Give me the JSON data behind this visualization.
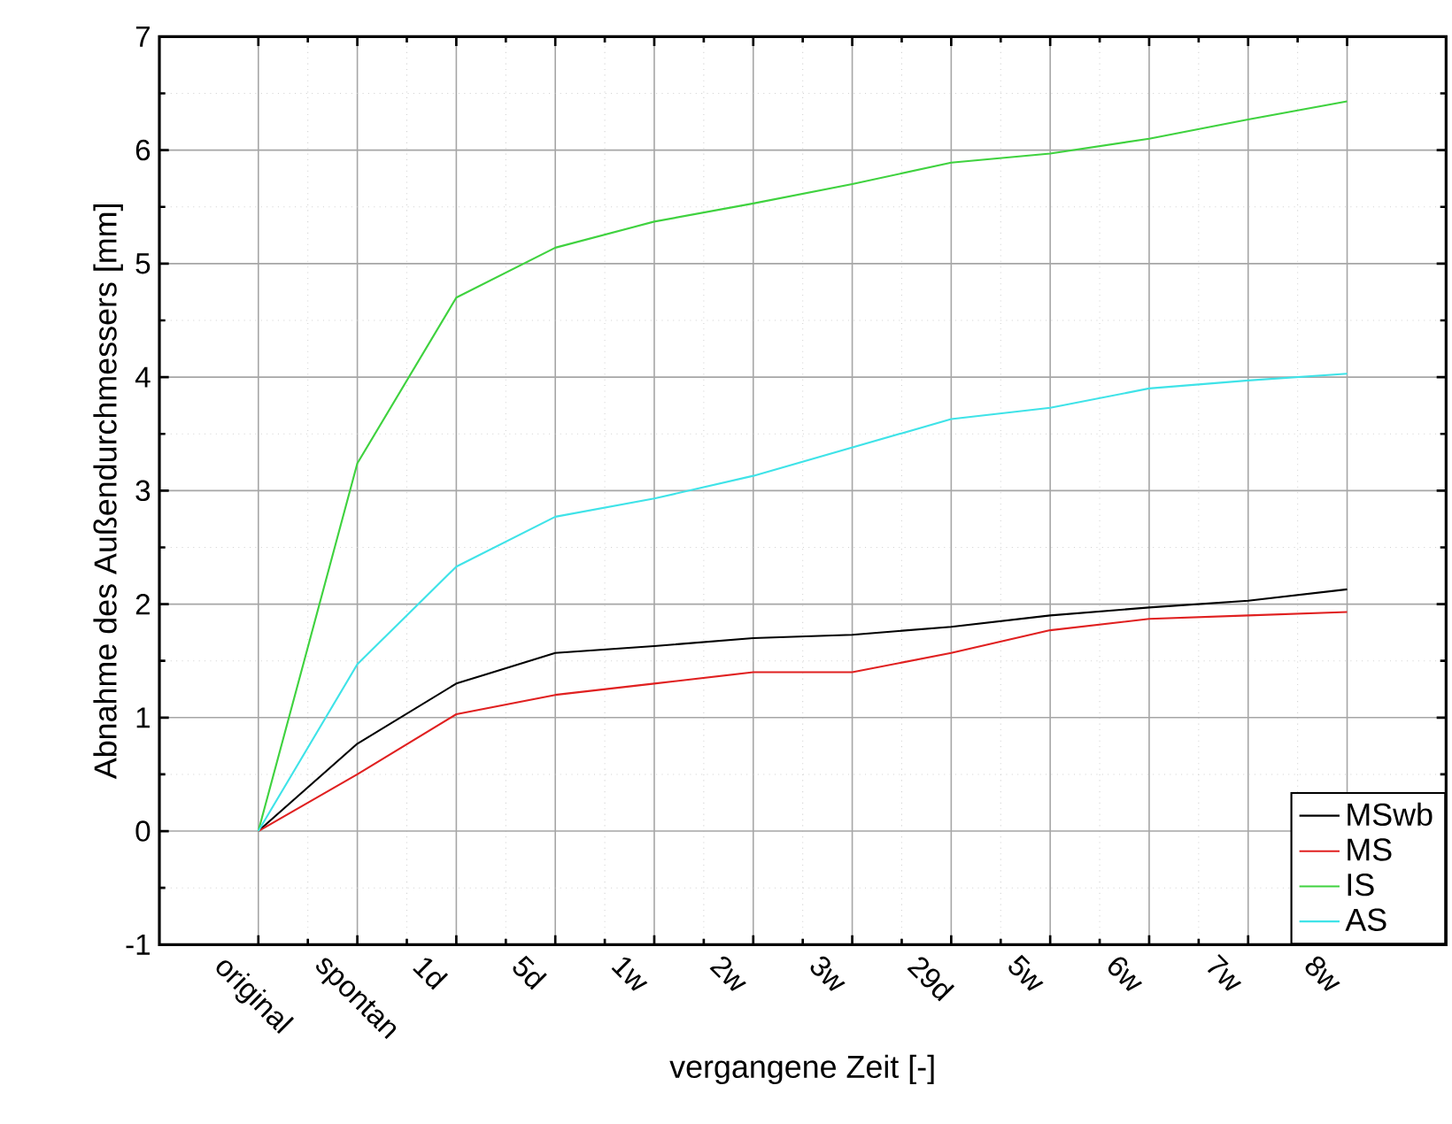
{
  "chart_data": {
    "type": "line",
    "xlabel": "vergangene Zeit [-]",
    "ylabel": "Abnahme des Außendurchmessers [mm]",
    "categories": [
      "original",
      "spontan",
      "1d",
      "5d",
      "1w",
      "2w",
      "3w",
      "29d",
      "5w",
      "6w",
      "7w",
      "8w"
    ],
    "series": [
      {
        "name": "MSwb",
        "color": "#000000",
        "values": [
          0,
          0.77,
          1.3,
          1.57,
          1.63,
          1.7,
          1.73,
          1.8,
          1.9,
          1.97,
          2.03,
          2.13
        ]
      },
      {
        "name": "MS",
        "color": "#e02020",
        "values": [
          0,
          0.5,
          1.03,
          1.2,
          1.3,
          1.4,
          1.4,
          1.57,
          1.77,
          1.87,
          1.9,
          1.93
        ]
      },
      {
        "name": "IS",
        "color": "#3fd23f",
        "values": [
          0,
          3.24,
          4.7,
          5.14,
          5.37,
          5.53,
          5.7,
          5.89,
          5.97,
          6.1,
          6.27,
          6.43
        ]
      },
      {
        "name": "AS",
        "color": "#3fe3e8",
        "values": [
          0,
          1.47,
          2.33,
          2.77,
          2.93,
          3.13,
          3.38,
          3.63,
          3.73,
          3.9,
          3.97,
          4.03
        ]
      }
    ],
    "ylim": [
      -1,
      7
    ],
    "yticks": [
      -1,
      0,
      1,
      2,
      3,
      4,
      5,
      6,
      7
    ],
    "grid": true,
    "legend": "bottom right",
    "marker": "none",
    "line_style": "solid"
  }
}
